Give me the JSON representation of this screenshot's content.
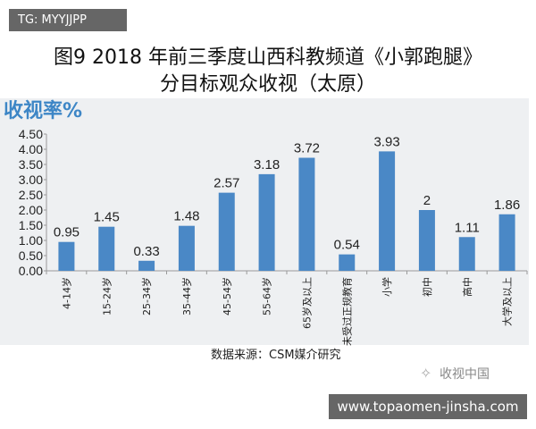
{
  "tag": "TG: MYYJJPP",
  "chart_data": {
    "type": "bar",
    "title": "图9 2018 年前三季度山西科教频道《小郭跑腿》",
    "subtitle": "分目标观众收视（太原）",
    "ylabel": "收视率%",
    "xlabel": "",
    "categories": [
      "4-14岁",
      "15-24岁",
      "25-34岁",
      "35-44岁",
      "45-54岁",
      "55-64岁",
      "65岁及以上",
      "未受过正规教育",
      "小学",
      "初中",
      "高中",
      "大学及以上"
    ],
    "values": [
      0.95,
      1.45,
      0.33,
      1.48,
      2.57,
      3.18,
      3.72,
      0.54,
      3.93,
      2,
      1.11,
      1.86
    ],
    "value_labels": [
      "0.95",
      "1.45",
      "0.33",
      "1.48",
      "2.57",
      "3.18",
      "3.72",
      "0.54",
      "3.93",
      "2",
      "1.11",
      "1.86"
    ],
    "yticks": [
      "0.00",
      "0.50",
      "1.00",
      "1.50",
      "2.00",
      "2.50",
      "3.00",
      "3.50",
      "4.00",
      "4.50"
    ],
    "ylim": [
      0,
      4.5
    ],
    "bar_color": "#4a88c6",
    "grid": false
  },
  "source": "数据来源：CSM媒介研究",
  "watermark": "收视中国",
  "url": "www.topaomen-jinsha.com"
}
